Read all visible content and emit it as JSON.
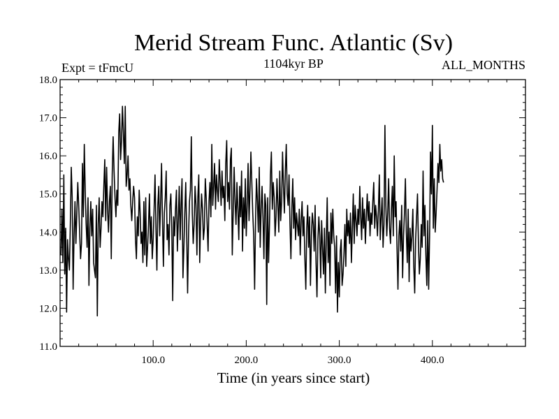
{
  "chart_data": {
    "type": "line",
    "title": "Merid Stream Func. Atlantic (Sv)",
    "subtitle_left": "Expt = tFmcU",
    "subtitle_center": "1104kyr BP",
    "subtitle_right": "ALL_MONTHS",
    "xlabel": "Time (in years since start)",
    "ylabel": "",
    "xlim": [
      0,
      500
    ],
    "ylim": [
      11.0,
      18.0
    ],
    "x_ticks": [
      100.0,
      200.0,
      300.0,
      400.0
    ],
    "x_tick_labels": [
      "100.0",
      "200.0",
      "300.0",
      "400.0"
    ],
    "y_ticks": [
      11.0,
      12.0,
      13.0,
      14.0,
      15.0,
      16.0,
      17.0,
      18.0
    ],
    "y_tick_labels": [
      "11.0",
      "12.0",
      "13.0",
      "14.0",
      "15.0",
      "16.0",
      "17.0",
      "18.0"
    ],
    "grid": false,
    "series": [
      {
        "name": "Merid Stream Func. Atlantic",
        "x_start": 1,
        "x_step": 1,
        "values": [
          13.4,
          14.6,
          13.2,
          15.5,
          12.9,
          14.1,
          11.9,
          13.8,
          13.3,
          13.0,
          14.2,
          15.7,
          14.9,
          12.5,
          13.9,
          14.8,
          13.7,
          14.5,
          15.3,
          14.7,
          14.0,
          13.3,
          13.7,
          15.8,
          14.4,
          16.3,
          15.1,
          14.2,
          13.6,
          14.9,
          12.6,
          14.1,
          14.8,
          13.9,
          14.6,
          13.2,
          13.0,
          12.8,
          14.7,
          11.8,
          14.2,
          14.9,
          13.6,
          14.1,
          14.8,
          14.4,
          15.2,
          15.9,
          14.3,
          15.7,
          14.6,
          14.0,
          14.8,
          15.2,
          13.3,
          15.5,
          16.5,
          15.6,
          14.9,
          14.4,
          15.1,
          14.7,
          16.6,
          17.1,
          15.9,
          16.4,
          17.3,
          16.6,
          15.8,
          17.3,
          15.2,
          15.5,
          16.0,
          15.1,
          15.4,
          14.7,
          14.3,
          14.8,
          15.2,
          14.9,
          13.8,
          13.3,
          14.4,
          13.9,
          15.1,
          14.5,
          13.7,
          14.0,
          13.2,
          14.8,
          13.4,
          14.9,
          13.1,
          13.6,
          14.2,
          15.0,
          13.7,
          14.4,
          13.3,
          13.8,
          14.6,
          15.5,
          14.1,
          13.0,
          14.7,
          15.2,
          13.9,
          14.8,
          15.8,
          14.3,
          13.1,
          14.5,
          14.9,
          15.6,
          13.8,
          14.2,
          13.4,
          14.7,
          15.0,
          14.1,
          12.2,
          14.4,
          13.9,
          14.6,
          15.1,
          13.5,
          14.3,
          15.2,
          13.8,
          14.7,
          15.4,
          12.8,
          13.6,
          14.5,
          15.3,
          14.0,
          12.4,
          13.9,
          14.8,
          15.1,
          16.5,
          14.5,
          13.7,
          14.2,
          15.2,
          14.7,
          13.4,
          14.9,
          15.5,
          13.2,
          14.3,
          15.0,
          14.6,
          13.8,
          14.1,
          15.4,
          14.9,
          14.2,
          13.5,
          14.8,
          15.3,
          14.4,
          16.3,
          14.7,
          15.2,
          15.8,
          14.6,
          15.5,
          15.1,
          14.8,
          15.9,
          15.3,
          14.7,
          15.6,
          14.9,
          15.2,
          14.3,
          15.8,
          16.4,
          14.8,
          15.3,
          14.6,
          15.9,
          16.2,
          13.4,
          14.5,
          15.7,
          14.8,
          14.2,
          15.3,
          14.6,
          13.8,
          15.2,
          14.4,
          15.6,
          13.5,
          14.9,
          14.1,
          15.4,
          13.9,
          14.7,
          15.8,
          14.3,
          15.1,
          16.1,
          15.3,
          14.5,
          13.9,
          12.5,
          14.3,
          15.4,
          14.8,
          14.0,
          15.7,
          13.6,
          14.6,
          15.2,
          14.4,
          13.3,
          15.0,
          14.7,
          12.1,
          14.9,
          13.2,
          14.2,
          15.5,
          16.1,
          14.6,
          15.3,
          14.9,
          13.9,
          14.4,
          15.4,
          14.7,
          14.0,
          15.6,
          14.3,
          14.8,
          16.1,
          15.2,
          14.5,
          15.6,
          16.3,
          15.0,
          14.7,
          15.5,
          14.2,
          13.3,
          14.6,
          15.4,
          14.1,
          14.9,
          13.8,
          14.5,
          14.2,
          13.9,
          14.6,
          13.4,
          14.3,
          14.8,
          13.9,
          14.4,
          13.3,
          12.5,
          14.1,
          14.7,
          13.6,
          14.4,
          12.6,
          13.9,
          14.5,
          14.2,
          13.5,
          14.7,
          13.2,
          12.3,
          13.8,
          14.4,
          13.9,
          12.8,
          14.3,
          13.6,
          12.9,
          14.1,
          12.4,
          13.8,
          14.9,
          13.2,
          14.0,
          12.6,
          14.5,
          13.7,
          14.6,
          13.9,
          13.6,
          12.4,
          13.9,
          11.9,
          13.2,
          12.3,
          13.5,
          13.8,
          12.6,
          12.9,
          13.4,
          14.2,
          13.1,
          14.6,
          13.9,
          14.3,
          13.7,
          14.5,
          13.2,
          14.1,
          15.0,
          13.7,
          14.7,
          14.3,
          13.9,
          14.6,
          14.2,
          15.2,
          14.4,
          13.8,
          14.9,
          14.1,
          14.6,
          13.7,
          14.4,
          15.0,
          14.3,
          14.8,
          13.9,
          14.5,
          14.2,
          14.8,
          15.3,
          14.1,
          14.7,
          14.4,
          13.9,
          14.6,
          15.5,
          13.8,
          14.4,
          14.9,
          13.6,
          14.2,
          16.8,
          14.7,
          13.9,
          14.5,
          15.4,
          14.1,
          13.7,
          14.6,
          15.2,
          13.9,
          16.0,
          14.4,
          14.8,
          13.6,
          12.5,
          13.9,
          14.3,
          13.5,
          14.7,
          12.8,
          13.9,
          14.5,
          15.4,
          14.0,
          13.2,
          14.6,
          12.7,
          14.1,
          13.5,
          13.9,
          14.6,
          13.1,
          12.4,
          13.8,
          14.4,
          15.0,
          13.7,
          12.9,
          13.3,
          14.2,
          13.6,
          15.6,
          13.9,
          14.7,
          13.4,
          12.6,
          14.3,
          12.5,
          13.9,
          16.1,
          15.0,
          16.8,
          14.1,
          15.4,
          14.0,
          14.5,
          15.1,
          15.8,
          15.3,
          16.3,
          15.6,
          15.9,
          15.4,
          15.3
        ]
      }
    ]
  }
}
